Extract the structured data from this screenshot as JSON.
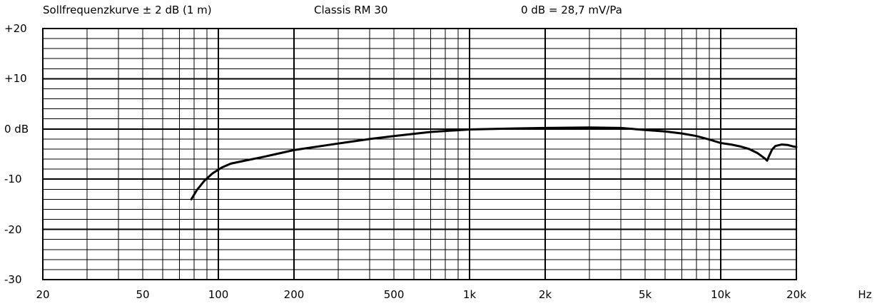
{
  "chart_data": {
    "type": "line",
    "header_left": "Sollfrequenzkurve ± 2 dB (1 m)",
    "header_center": "Classis RM 30",
    "header_right": "0 dB = 28,7 mV/Pa",
    "x_scale": "log",
    "xlim": [
      20,
      20000
    ],
    "ylim": [
      -30,
      20
    ],
    "x_unit_label": "Hz",
    "x_ticks": [
      {
        "value": 20,
        "label": "20"
      },
      {
        "value": 50,
        "label": "50"
      },
      {
        "value": 100,
        "label": "100"
      },
      {
        "value": 200,
        "label": "200"
      },
      {
        "value": 500,
        "label": "500"
      },
      {
        "value": 1000,
        "label": "1k"
      },
      {
        "value": 2000,
        "label": "2k"
      },
      {
        "value": 5000,
        "label": "5k"
      },
      {
        "value": 10000,
        "label": "10k"
      },
      {
        "value": 20000,
        "label": "20k"
      }
    ],
    "y_ticks": [
      {
        "value": 20,
        "label": "+20"
      },
      {
        "value": 10,
        "label": "+10"
      },
      {
        "value": 0,
        "label": "0 dB"
      },
      {
        "value": -10,
        "label": "-10"
      },
      {
        "value": -20,
        "label": "-20"
      },
      {
        "value": -30,
        "label": "-30"
      }
    ],
    "grid": true,
    "series": [
      {
        "color": "#000000",
        "points": [
          [
            78,
            -14.0
          ],
          [
            82,
            -12.2
          ],
          [
            88,
            -10.3
          ],
          [
            95,
            -8.8
          ],
          [
            103,
            -7.7
          ],
          [
            112,
            -6.9
          ],
          [
            125,
            -6.4
          ],
          [
            150,
            -5.6
          ],
          [
            200,
            -4.2
          ],
          [
            300,
            -2.9
          ],
          [
            400,
            -2.0
          ],
          [
            500,
            -1.4
          ],
          [
            700,
            -0.6
          ],
          [
            1000,
            -0.1
          ],
          [
            1500,
            0.1
          ],
          [
            2000,
            0.2
          ],
          [
            3000,
            0.3
          ],
          [
            4000,
            0.2
          ],
          [
            5000,
            -0.2
          ],
          [
            6000,
            -0.5
          ],
          [
            7000,
            -0.9
          ],
          [
            8000,
            -1.4
          ],
          [
            9000,
            -2.1
          ],
          [
            10000,
            -2.8
          ],
          [
            11000,
            -3.1
          ],
          [
            12000,
            -3.5
          ],
          [
            13000,
            -4.0
          ],
          [
            14000,
            -4.8
          ],
          [
            15000,
            -5.9
          ],
          [
            15300,
            -6.3
          ],
          [
            15600,
            -5.3
          ],
          [
            16000,
            -4.1
          ],
          [
            16500,
            -3.4
          ],
          [
            17500,
            -3.1
          ],
          [
            18500,
            -3.2
          ],
          [
            19500,
            -3.5
          ],
          [
            20000,
            -3.6
          ]
        ]
      }
    ]
  }
}
